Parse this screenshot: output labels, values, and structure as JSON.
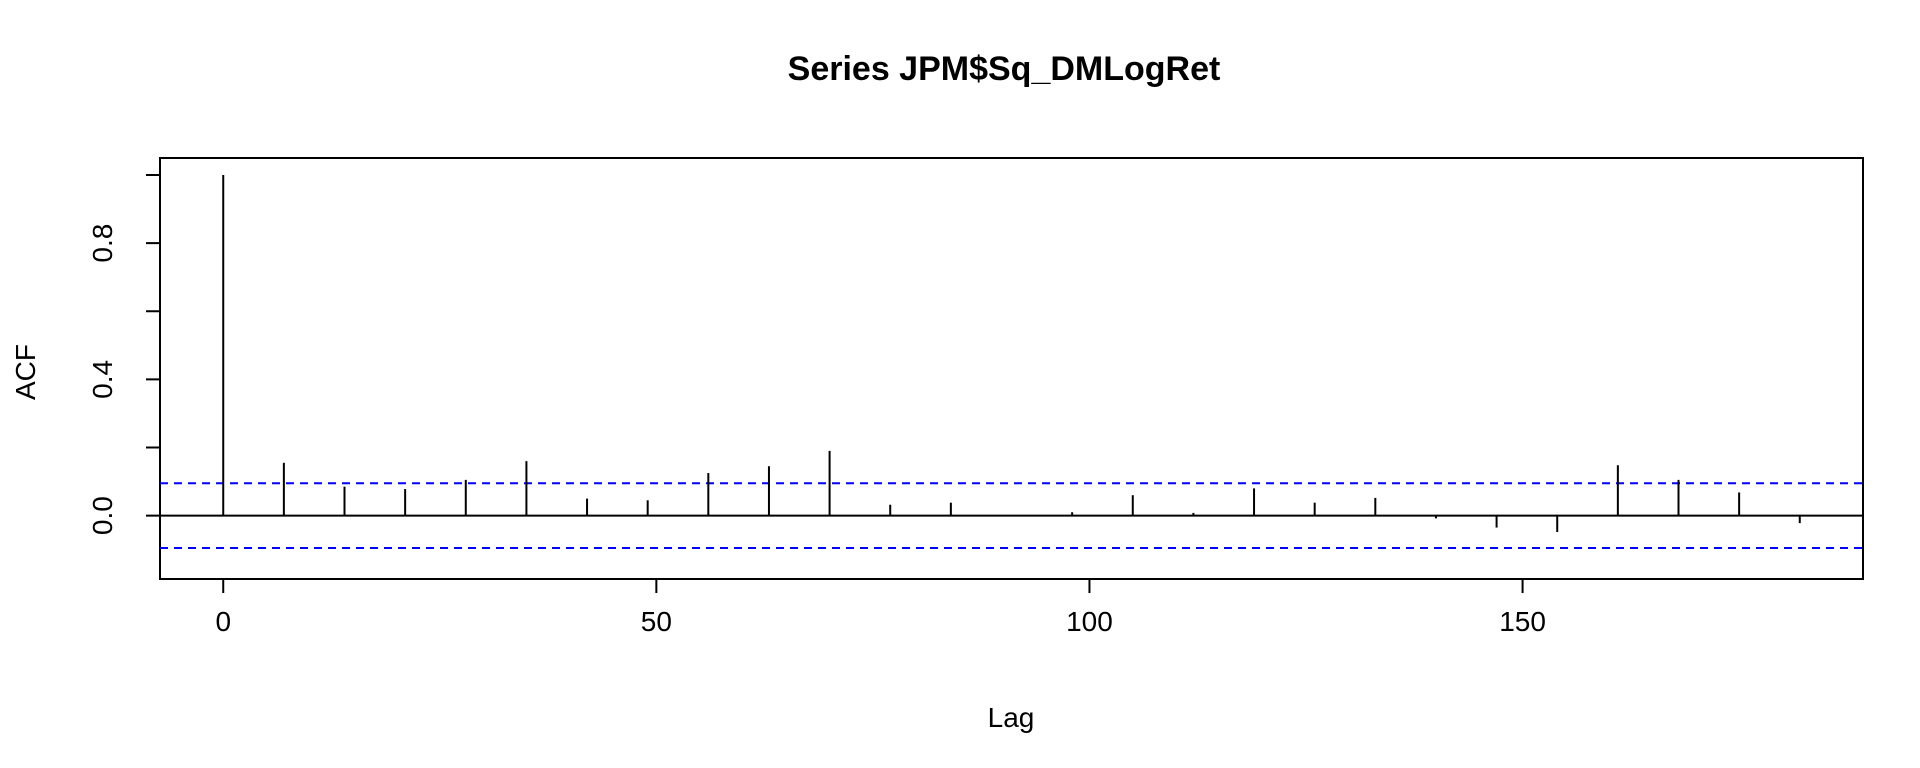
{
  "chart_data": {
    "type": "acf",
    "title": "Series  JPM$Sq_DMLogRet",
    "xlabel": "Lag",
    "ylabel": "ACF",
    "xlim": [
      -7.3,
      189.3
    ],
    "ylim": [
      -0.142,
      1.0
    ],
    "x_ticks": [
      {
        "value": 0,
        "label": "0"
      },
      {
        "value": 50,
        "label": "50"
      },
      {
        "value": 100,
        "label": "100"
      },
      {
        "value": 150,
        "label": "150"
      }
    ],
    "y_ticks": [
      {
        "value": 0.0,
        "label": "0.0"
      },
      {
        "value": 0.2,
        "label": ""
      },
      {
        "value": 0.4,
        "label": "0.4"
      },
      {
        "value": 0.6,
        "label": ""
      },
      {
        "value": 0.8,
        "label": "0.8"
      },
      {
        "value": 1.0,
        "label": ""
      }
    ],
    "confidence_bound": 0.095,
    "confidence_color": "#0000ff",
    "line_color": "#000000",
    "lags": [
      0,
      7,
      14,
      21,
      28,
      35,
      42,
      49,
      56,
      63,
      70,
      77,
      84,
      91,
      98,
      105,
      112,
      119,
      126,
      133,
      140,
      147,
      154,
      161,
      168,
      175,
      182
    ],
    "values": [
      1.0,
      0.155,
      0.085,
      0.078,
      0.105,
      0.16,
      0.05,
      0.045,
      0.125,
      0.145,
      0.19,
      0.032,
      0.038,
      0.0,
      0.01,
      0.06,
      0.008,
      0.08,
      0.038,
      0.052,
      -0.008,
      -0.035,
      -0.048,
      0.148,
      0.105,
      0.068,
      -0.022
    ],
    "grid": false,
    "legend": "none"
  }
}
